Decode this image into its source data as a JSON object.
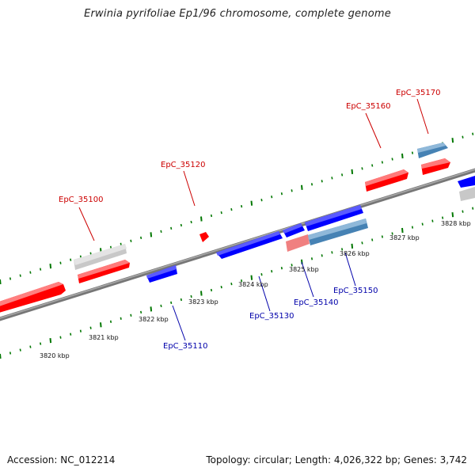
{
  "title": "Erwinia pyrifoliae Ep1/96 chromosome, complete genome",
  "footer": {
    "accession": "Accession: NC_012214",
    "summary": "Topology: circular; Length: 4,026,322 bp; Genes: 3,742"
  },
  "colors": {
    "forward_gene": "#ff0000",
    "reverse_gene": "#0000ff",
    "light_red_gene": "#f08080",
    "steel_blue_gene": "#4682b4",
    "pseudo_gene": "#c8c8c8",
    "backbone": "#808080",
    "ticks": "#007700",
    "forward_label": "#cc0000",
    "reverse_label": "#0000aa"
  },
  "kbp_ticks": [
    "3820 kbp",
    "3821 kbp",
    "3822 kbp",
    "3823 kbp",
    "3824 kbp",
    "3825 kbp",
    "3826 kbp",
    "3827 kbp",
    "3828 kbp"
  ],
  "forward_labels": [
    "EpC_35100",
    "EpC_35120",
    "EpC_35160",
    "EpC_35170"
  ],
  "reverse_labels": [
    "EpC_35110",
    "EpC_35130",
    "EpC_35140",
    "EpC_35150"
  ]
}
